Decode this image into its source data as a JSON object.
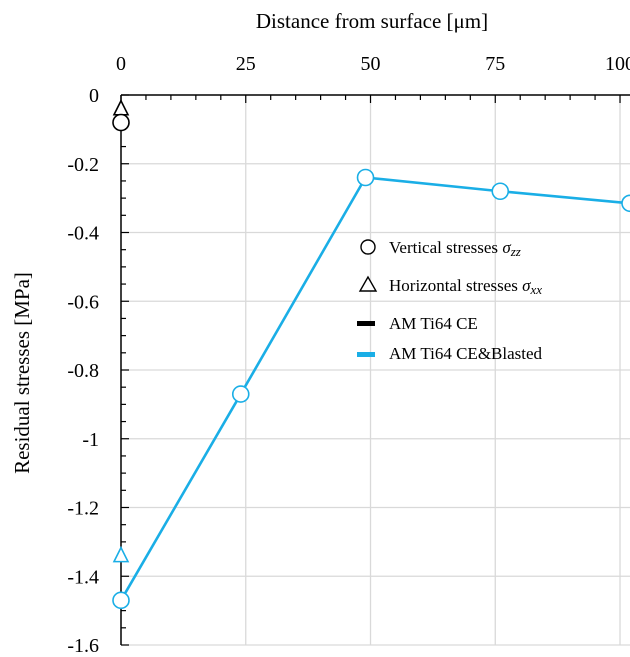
{
  "chart_data": {
    "type": "line",
    "xlabel": "Distance from surface [μm]",
    "ylabel": "Residual stresses [MPa]",
    "xlim": [
      0,
      102
    ],
    "ylim": [
      -1.6,
      0
    ],
    "x_ticks": [
      0,
      25,
      50,
      75,
      100
    ],
    "y_ticks": [
      0,
      -0.2,
      -0.4,
      -0.6,
      -0.8,
      -1,
      -1.2,
      -1.4,
      -1.6
    ],
    "x_tick_labels": [
      "0",
      "25",
      "50",
      "75",
      "100"
    ],
    "y_tick_labels": [
      "0",
      "-0.2",
      "-0.4",
      "-0.6",
      "-0.8",
      "-1",
      "-1.2",
      "-1.4",
      "-1.6"
    ],
    "x_axis_position": "top",
    "grid": true,
    "legend_position": "right",
    "series": [
      {
        "name": "AM Ti64 CE",
        "color": "#000000",
        "points": [],
        "markers_vertical": [
          {
            "x": 0,
            "y": -0.08
          }
        ],
        "markers_horizontal": [
          {
            "x": 0,
            "y": -0.04
          }
        ]
      },
      {
        "name": "AM Ti64 CE&Blasted",
        "color": "#1AAEE6",
        "points": [
          {
            "x": 0,
            "y": -1.47
          },
          {
            "x": 24,
            "y": -0.87
          },
          {
            "x": 49,
            "y": -0.24
          },
          {
            "x": 76,
            "y": -0.28
          },
          {
            "x": 102,
            "y": -0.315
          }
        ],
        "markers_vertical": [
          {
            "x": 0,
            "y": -1.47
          },
          {
            "x": 24,
            "y": -0.87
          },
          {
            "x": 49,
            "y": -0.24
          },
          {
            "x": 76,
            "y": -0.28
          },
          {
            "x": 102,
            "y": -0.315
          }
        ],
        "markers_horizontal": [
          {
            "x": 0,
            "y": -1.34
          }
        ]
      }
    ],
    "legend": {
      "marker_items": [
        {
          "shape": "circle",
          "text": "Vertical stresses ",
          "symbol": "σ",
          "subscript": "zz"
        },
        {
          "shape": "triangle",
          "text": "Horizontal stresses ",
          "symbol": "σ",
          "subscript": "xx"
        }
      ],
      "line_items": [
        {
          "text": "AM Ti64 CE",
          "color": "#000000"
        },
        {
          "text": "AM Ti64 CE&Blasted",
          "color": "#1AAEE6"
        }
      ]
    }
  }
}
